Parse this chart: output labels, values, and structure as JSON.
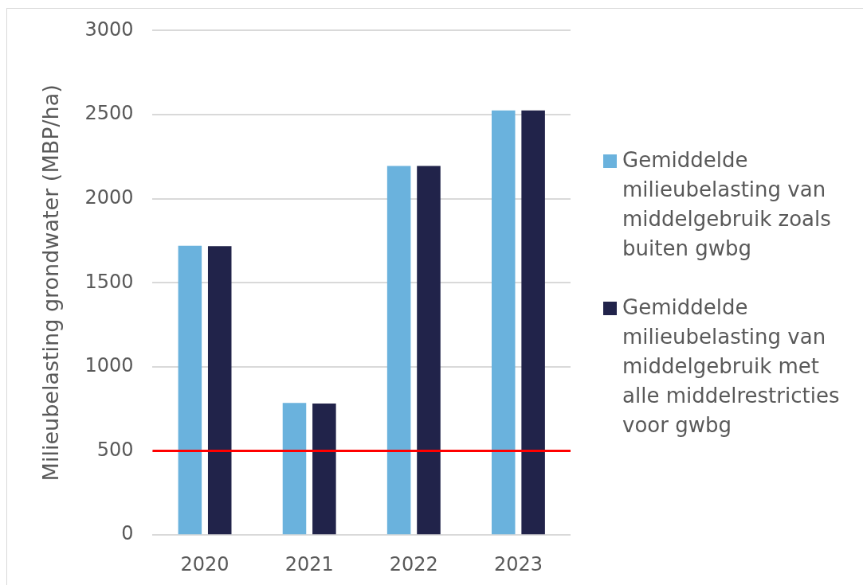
{
  "chart_data": {
    "type": "bar",
    "ylabel": "Milieubelasting grondwater (MBP/ha)",
    "categories": [
      "2020",
      "2021",
      "2022",
      "2023"
    ],
    "series": [
      {
        "name": "Gemiddelde milieubelasting van middelgebruik zoals buiten gwbg",
        "color": "#6ab2dd",
        "values": [
          1720,
          785,
          2195,
          2525
        ]
      },
      {
        "name": "Gemiddelde milieubelasting van middelgebruik met alle middelrestricties voor gwbg",
        "color": "#21234a",
        "values": [
          1718,
          782,
          2195,
          2525
        ]
      }
    ],
    "ylim": [
      0,
      3000
    ],
    "yticks": [
      0,
      500,
      1000,
      1500,
      2000,
      2500,
      3000
    ],
    "grid": "y",
    "legend": "right",
    "ref_lines": [
      {
        "axis": "y",
        "value": 500,
        "color": "#ff0000"
      }
    ]
  }
}
